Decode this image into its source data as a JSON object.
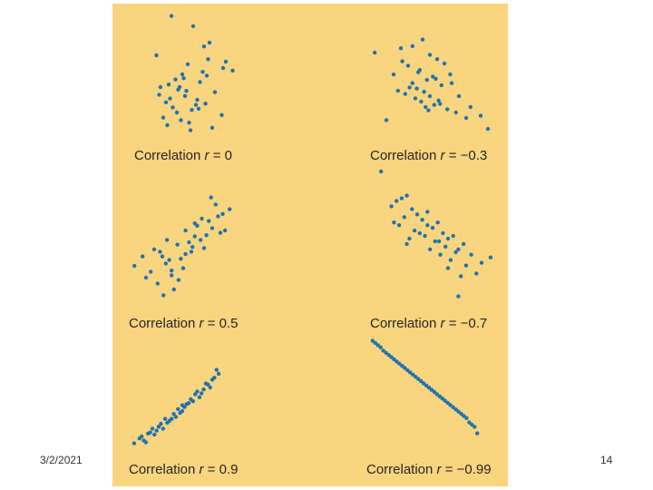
{
  "footer": {
    "date": "3/2/2021",
    "slide_number": "14"
  },
  "colors": {
    "panel_background": "#f9d57f",
    "point": "#1f73b0",
    "text": "#262626"
  },
  "chart_data": [
    {
      "type": "scatter",
      "caption_prefix": "Correlation ",
      "caption_symbol": "r",
      "caption_suffix": " = 0",
      "correlation": 0,
      "x": [
        0.3,
        0.46,
        0.19,
        0.54,
        0.58,
        0.7,
        0.75,
        0.42,
        0.38,
        0.33,
        0.51,
        0.22,
        0.28,
        0.35,
        0.62,
        0.4,
        0.26,
        0.49,
        0.31,
        0.45,
        0.55,
        0.67,
        0.37,
        0.43,
        0.27,
        0.6,
        0.21,
        0.48,
        0.34,
        0.39,
        0.57,
        0.24,
        0.44,
        0.68,
        0.53,
        0.36,
        0.29,
        0.5,
        0.41,
        0.56
      ],
      "y": [
        0.96,
        0.88,
        0.65,
        0.72,
        0.75,
        0.6,
        0.53,
        0.58,
        0.5,
        0.46,
        0.44,
        0.4,
        0.42,
        0.38,
        0.36,
        0.33,
        0.28,
        0.3,
        0.24,
        0.22,
        0.27,
        0.18,
        0.14,
        0.12,
        0.1,
        0.08,
        0.34,
        0.26,
        0.2,
        0.47,
        0.62,
        0.16,
        0.06,
        0.55,
        0.52,
        0.4,
        0.31,
        0.23,
        0.37,
        0.49
      ]
    },
    {
      "type": "scatter",
      "caption_prefix": "Correlation ",
      "caption_symbol": "r",
      "caption_suffix": " = −0.3",
      "correlation": -0.3,
      "x": [
        0.12,
        0.3,
        0.38,
        0.45,
        0.5,
        0.55,
        0.6,
        0.25,
        0.35,
        0.42,
        0.48,
        0.52,
        0.58,
        0.65,
        0.7,
        0.28,
        0.33,
        0.4,
        0.44,
        0.47,
        0.53,
        0.62,
        0.68,
        0.75,
        0.85,
        0.2,
        0.36,
        0.46,
        0.56,
        0.78,
        0.9,
        0.43,
        0.5,
        0.57,
        0.38,
        0.31,
        0.64,
        0.41,
        0.49,
        0.54
      ],
      "y": [
        0.8,
        0.84,
        0.86,
        0.92,
        0.78,
        0.74,
        0.7,
        0.6,
        0.68,
        0.62,
        0.55,
        0.58,
        0.5,
        0.52,
        0.4,
        0.45,
        0.42,
        0.38,
        0.35,
        0.3,
        0.32,
        0.28,
        0.25,
        0.2,
        0.22,
        0.18,
        0.48,
        0.44,
        0.36,
        0.3,
        0.1,
        0.64,
        0.4,
        0.33,
        0.52,
        0.72,
        0.6,
        0.47,
        0.27,
        0.56
      ]
    },
    {
      "type": "scatter",
      "caption_prefix": "Correlation ",
      "caption_symbol": "r",
      "caption_suffix": " = 0.5",
      "correlation": 0.5,
      "x": [
        0.08,
        0.15,
        0.22,
        0.3,
        0.38,
        0.45,
        0.52,
        0.6,
        0.68,
        0.75,
        0.82,
        0.9,
        0.18,
        0.28,
        0.35,
        0.42,
        0.5,
        0.58,
        0.65,
        0.72,
        0.8,
        0.86,
        0.25,
        0.33,
        0.4,
        0.48,
        0.55,
        0.62,
        0.7,
        0.78,
        0.32,
        0.46,
        0.57,
        0.66,
        0.74,
        0.4,
        0.52,
        0.36,
        0.6,
        0.84
      ],
      "y": [
        0.3,
        0.38,
        0.25,
        0.42,
        0.35,
        0.48,
        0.4,
        0.55,
        0.45,
        0.62,
        0.58,
        0.78,
        0.2,
        0.15,
        0.32,
        0.1,
        0.28,
        0.46,
        0.52,
        0.68,
        0.72,
        0.6,
        0.44,
        0.05,
        0.22,
        0.36,
        0.5,
        0.64,
        0.56,
        0.82,
        0.38,
        0.18,
        0.42,
        0.7,
        0.88,
        0.26,
        0.6,
        0.52,
        0.66,
        0.74
      ]
    },
    {
      "type": "scatter",
      "caption_prefix": "Correlation ",
      "caption_symbol": "r",
      "caption_suffix": " = −0.7",
      "correlation": -0.7,
      "x": [
        0.1,
        0.18,
        0.22,
        0.26,
        0.3,
        0.34,
        0.38,
        0.42,
        0.46,
        0.5,
        0.54,
        0.58,
        0.62,
        0.66,
        0.7,
        0.74,
        0.8,
        0.88,
        0.95,
        0.2,
        0.28,
        0.36,
        0.44,
        0.52,
        0.6,
        0.68,
        0.76,
        0.84,
        0.24,
        0.32,
        0.4,
        0.48,
        0.56,
        0.64,
        0.72,
        0.3,
        0.46,
        0.55,
        0.62,
        0.7
      ],
      "y": [
        0.98,
        0.72,
        0.76,
        0.78,
        0.8,
        0.7,
        0.66,
        0.62,
        0.68,
        0.56,
        0.6,
        0.52,
        0.48,
        0.5,
        0.4,
        0.44,
        0.36,
        0.3,
        0.34,
        0.6,
        0.64,
        0.54,
        0.5,
        0.46,
        0.42,
        0.38,
        0.28,
        0.22,
        0.58,
        0.48,
        0.52,
        0.4,
        0.36,
        0.32,
        0.2,
        0.44,
        0.58,
        0.46,
        0.26,
        0.05
      ]
    },
    {
      "type": "scatter",
      "caption_prefix": "Correlation ",
      "caption_symbol": "r",
      "caption_suffix": " = 0.9",
      "correlation": 0.9,
      "x": [
        0.05,
        0.1,
        0.14,
        0.18,
        0.22,
        0.26,
        0.3,
        0.34,
        0.38,
        0.42,
        0.46,
        0.5,
        0.54,
        0.58,
        0.62,
        0.66,
        0.7,
        0.74,
        0.78,
        0.82,
        0.12,
        0.2,
        0.28,
        0.36,
        0.44,
        0.52,
        0.6,
        0.68,
        0.76,
        0.84,
        0.16,
        0.24,
        0.32,
        0.4,
        0.48,
        0.56,
        0.64,
        0.72,
        0.8,
        0.5
      ],
      "y": [
        0.05,
        0.1,
        0.08,
        0.15,
        0.2,
        0.18,
        0.25,
        0.3,
        0.28,
        0.35,
        0.4,
        0.38,
        0.45,
        0.5,
        0.55,
        0.52,
        0.6,
        0.65,
        0.7,
        0.8,
        0.12,
        0.16,
        0.22,
        0.26,
        0.32,
        0.42,
        0.48,
        0.56,
        0.62,
        0.76,
        0.06,
        0.14,
        0.2,
        0.3,
        0.36,
        0.46,
        0.58,
        0.66,
        0.72,
        0.44
      ]
    },
    {
      "type": "scatter",
      "caption_prefix": "Correlation ",
      "caption_symbol": "r",
      "caption_suffix": " = −0.99",
      "correlation": -0.99,
      "x": [
        0.1,
        0.14,
        0.18,
        0.22,
        0.26,
        0.3,
        0.34,
        0.38,
        0.42,
        0.46,
        0.5,
        0.54,
        0.58,
        0.62,
        0.66,
        0.7,
        0.74,
        0.78,
        0.82,
        0.86,
        0.12,
        0.2,
        0.28,
        0.36,
        0.44,
        0.52,
        0.6,
        0.68,
        0.76,
        0.84,
        0.16,
        0.24,
        0.32,
        0.4,
        0.48,
        0.56,
        0.64,
        0.72,
        0.8,
        0.88
      ],
      "y": [
        0.97,
        0.93,
        0.88,
        0.84,
        0.8,
        0.76,
        0.72,
        0.68,
        0.64,
        0.6,
        0.56,
        0.52,
        0.48,
        0.44,
        0.4,
        0.36,
        0.32,
        0.28,
        0.22,
        0.18,
        0.95,
        0.86,
        0.78,
        0.7,
        0.62,
        0.54,
        0.46,
        0.38,
        0.3,
        0.2,
        0.91,
        0.82,
        0.74,
        0.66,
        0.58,
        0.5,
        0.42,
        0.34,
        0.26,
        0.12
      ]
    }
  ]
}
